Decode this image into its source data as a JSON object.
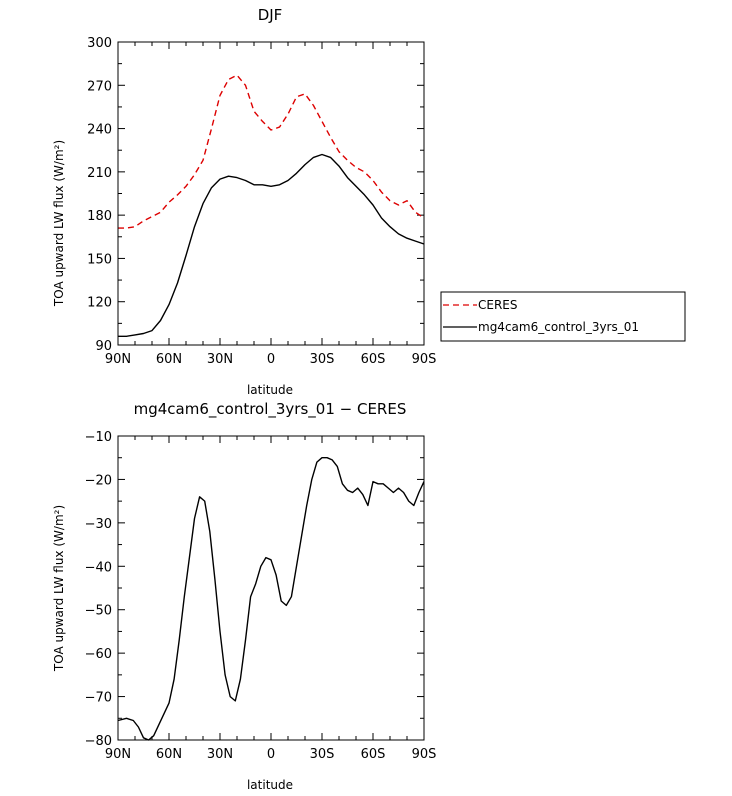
{
  "chart_data": [
    {
      "type": "line",
      "title": "DJF",
      "xlabel": "latitude",
      "ylabel": "TOA upward LW flux (W/m²)",
      "xlim": [
        90,
        -90
      ],
      "ylim": [
        90,
        300
      ],
      "x_ticks": [
        {
          "value": 90,
          "label": "90N"
        },
        {
          "value": 60,
          "label": "60N"
        },
        {
          "value": 30,
          "label": "30N"
        },
        {
          "value": 0,
          "label": "0"
        },
        {
          "value": -30,
          "label": "30S"
        },
        {
          "value": -60,
          "label": "60S"
        },
        {
          "value": -90,
          "label": "90S"
        }
      ],
      "y_ticks": [
        {
          "value": 90,
          "label": "90"
        },
        {
          "value": 120,
          "label": "120"
        },
        {
          "value": 150,
          "label": "150"
        },
        {
          "value": 180,
          "label": "180"
        },
        {
          "value": 210,
          "label": "210"
        },
        {
          "value": 240,
          "label": "240"
        },
        {
          "value": 270,
          "label": "270"
        },
        {
          "value": 300,
          "label": "300"
        }
      ],
      "legend_position": "right",
      "series": [
        {
          "name": "CERES",
          "color": "#dd0000",
          "dashed": true,
          "x": [
            90,
            85,
            80,
            75,
            70,
            65,
            60,
            55,
            50,
            45,
            40,
            35,
            30,
            25,
            20,
            15,
            10,
            5,
            0,
            -5,
            -10,
            -15,
            -20,
            -25,
            -30,
            -35,
            -40,
            -45,
            -50,
            -55,
            -60,
            -65,
            -70,
            -75,
            -80,
            -85,
            -90
          ],
          "y": [
            171,
            171,
            172,
            176,
            179,
            182,
            189,
            194,
            200,
            208,
            218,
            240,
            263,
            274,
            277,
            270,
            252,
            245,
            239,
            241,
            250,
            262,
            264,
            256,
            245,
            234,
            224,
            218,
            213,
            210,
            204,
            196,
            190,
            187,
            190,
            182,
            178
          ]
        },
        {
          "name": "mg4cam6_control_3yrs_01",
          "color": "#000000",
          "dashed": false,
          "x": [
            90,
            85,
            80,
            75,
            70,
            65,
            60,
            55,
            50,
            45,
            40,
            35,
            30,
            25,
            20,
            15,
            10,
            5,
            0,
            -5,
            -10,
            -15,
            -20,
            -25,
            -30,
            -35,
            -40,
            -45,
            -50,
            -55,
            -60,
            -65,
            -70,
            -75,
            -80,
            -85,
            -90
          ],
          "y": [
            96,
            96,
            97,
            98,
            100,
            107,
            118,
            133,
            152,
            172,
            188,
            199,
            205,
            207,
            206,
            204,
            201,
            201,
            200,
            201,
            204,
            209,
            215,
            220,
            222,
            220,
            214,
            206,
            200,
            194,
            187,
            178,
            172,
            167,
            164,
            162,
            160
          ]
        }
      ]
    },
    {
      "type": "line",
      "title": "mg4cam6_control_3yrs_01 − CERES",
      "xlabel": "latitude",
      "ylabel": "TOA upward LW flux (W/m²)",
      "xlim": [
        90,
        -90
      ],
      "ylim": [
        -80,
        -10
      ],
      "x_ticks": [
        {
          "value": 90,
          "label": "90N"
        },
        {
          "value": 60,
          "label": "60N"
        },
        {
          "value": 30,
          "label": "30N"
        },
        {
          "value": 0,
          "label": "0"
        },
        {
          "value": -30,
          "label": "30S"
        },
        {
          "value": -60,
          "label": "60S"
        },
        {
          "value": -90,
          "label": "90S"
        }
      ],
      "y_ticks": [
        {
          "value": -80,
          "label": "−80"
        },
        {
          "value": -70,
          "label": "−70"
        },
        {
          "value": -60,
          "label": "−60"
        },
        {
          "value": -50,
          "label": "−50"
        },
        {
          "value": -40,
          "label": "−40"
        },
        {
          "value": -30,
          "label": "−30"
        },
        {
          "value": -20,
          "label": "−20"
        },
        {
          "value": -10,
          "label": "−10"
        }
      ],
      "series": [
        {
          "color": "#000000",
          "dashed": false,
          "x": [
            90,
            85,
            81,
            78,
            75,
            72,
            69,
            66,
            63,
            60,
            57,
            54,
            51,
            48,
            45,
            42,
            39,
            36,
            33,
            30,
            27,
            24,
            21,
            18,
            15,
            12,
            9,
            6,
            3,
            0,
            -3,
            -6,
            -9,
            -12,
            -15,
            -18,
            -21,
            -24,
            -27,
            -30,
            -33,
            -36,
            -39,
            -42,
            -45,
            -48,
            -51,
            -54,
            -57,
            -60,
            -63,
            -66,
            -69,
            -72,
            -75,
            -78,
            -81,
            -84,
            -87,
            -90
          ],
          "y": [
            -75.5,
            -75,
            -75.5,
            -77,
            -79.5,
            -80,
            -79,
            -76.5,
            -74,
            -71.5,
            -66,
            -57,
            -47,
            -38,
            -29,
            -24,
            -25,
            -32,
            -43,
            -55,
            -65,
            -70,
            -71,
            -66,
            -57,
            -47,
            -44,
            -40,
            -38,
            -38.5,
            -42,
            -48,
            -49,
            -47,
            -40,
            -33,
            -26,
            -20,
            -16,
            -15,
            -15,
            -15.5,
            -17,
            -21,
            -22.5,
            -23,
            -22,
            -23.5,
            -26,
            -20.5,
            -21,
            -21,
            -22,
            -23,
            -22,
            -23,
            -25,
            -26,
            -23,
            -20.5
          ]
        }
      ]
    }
  ]
}
